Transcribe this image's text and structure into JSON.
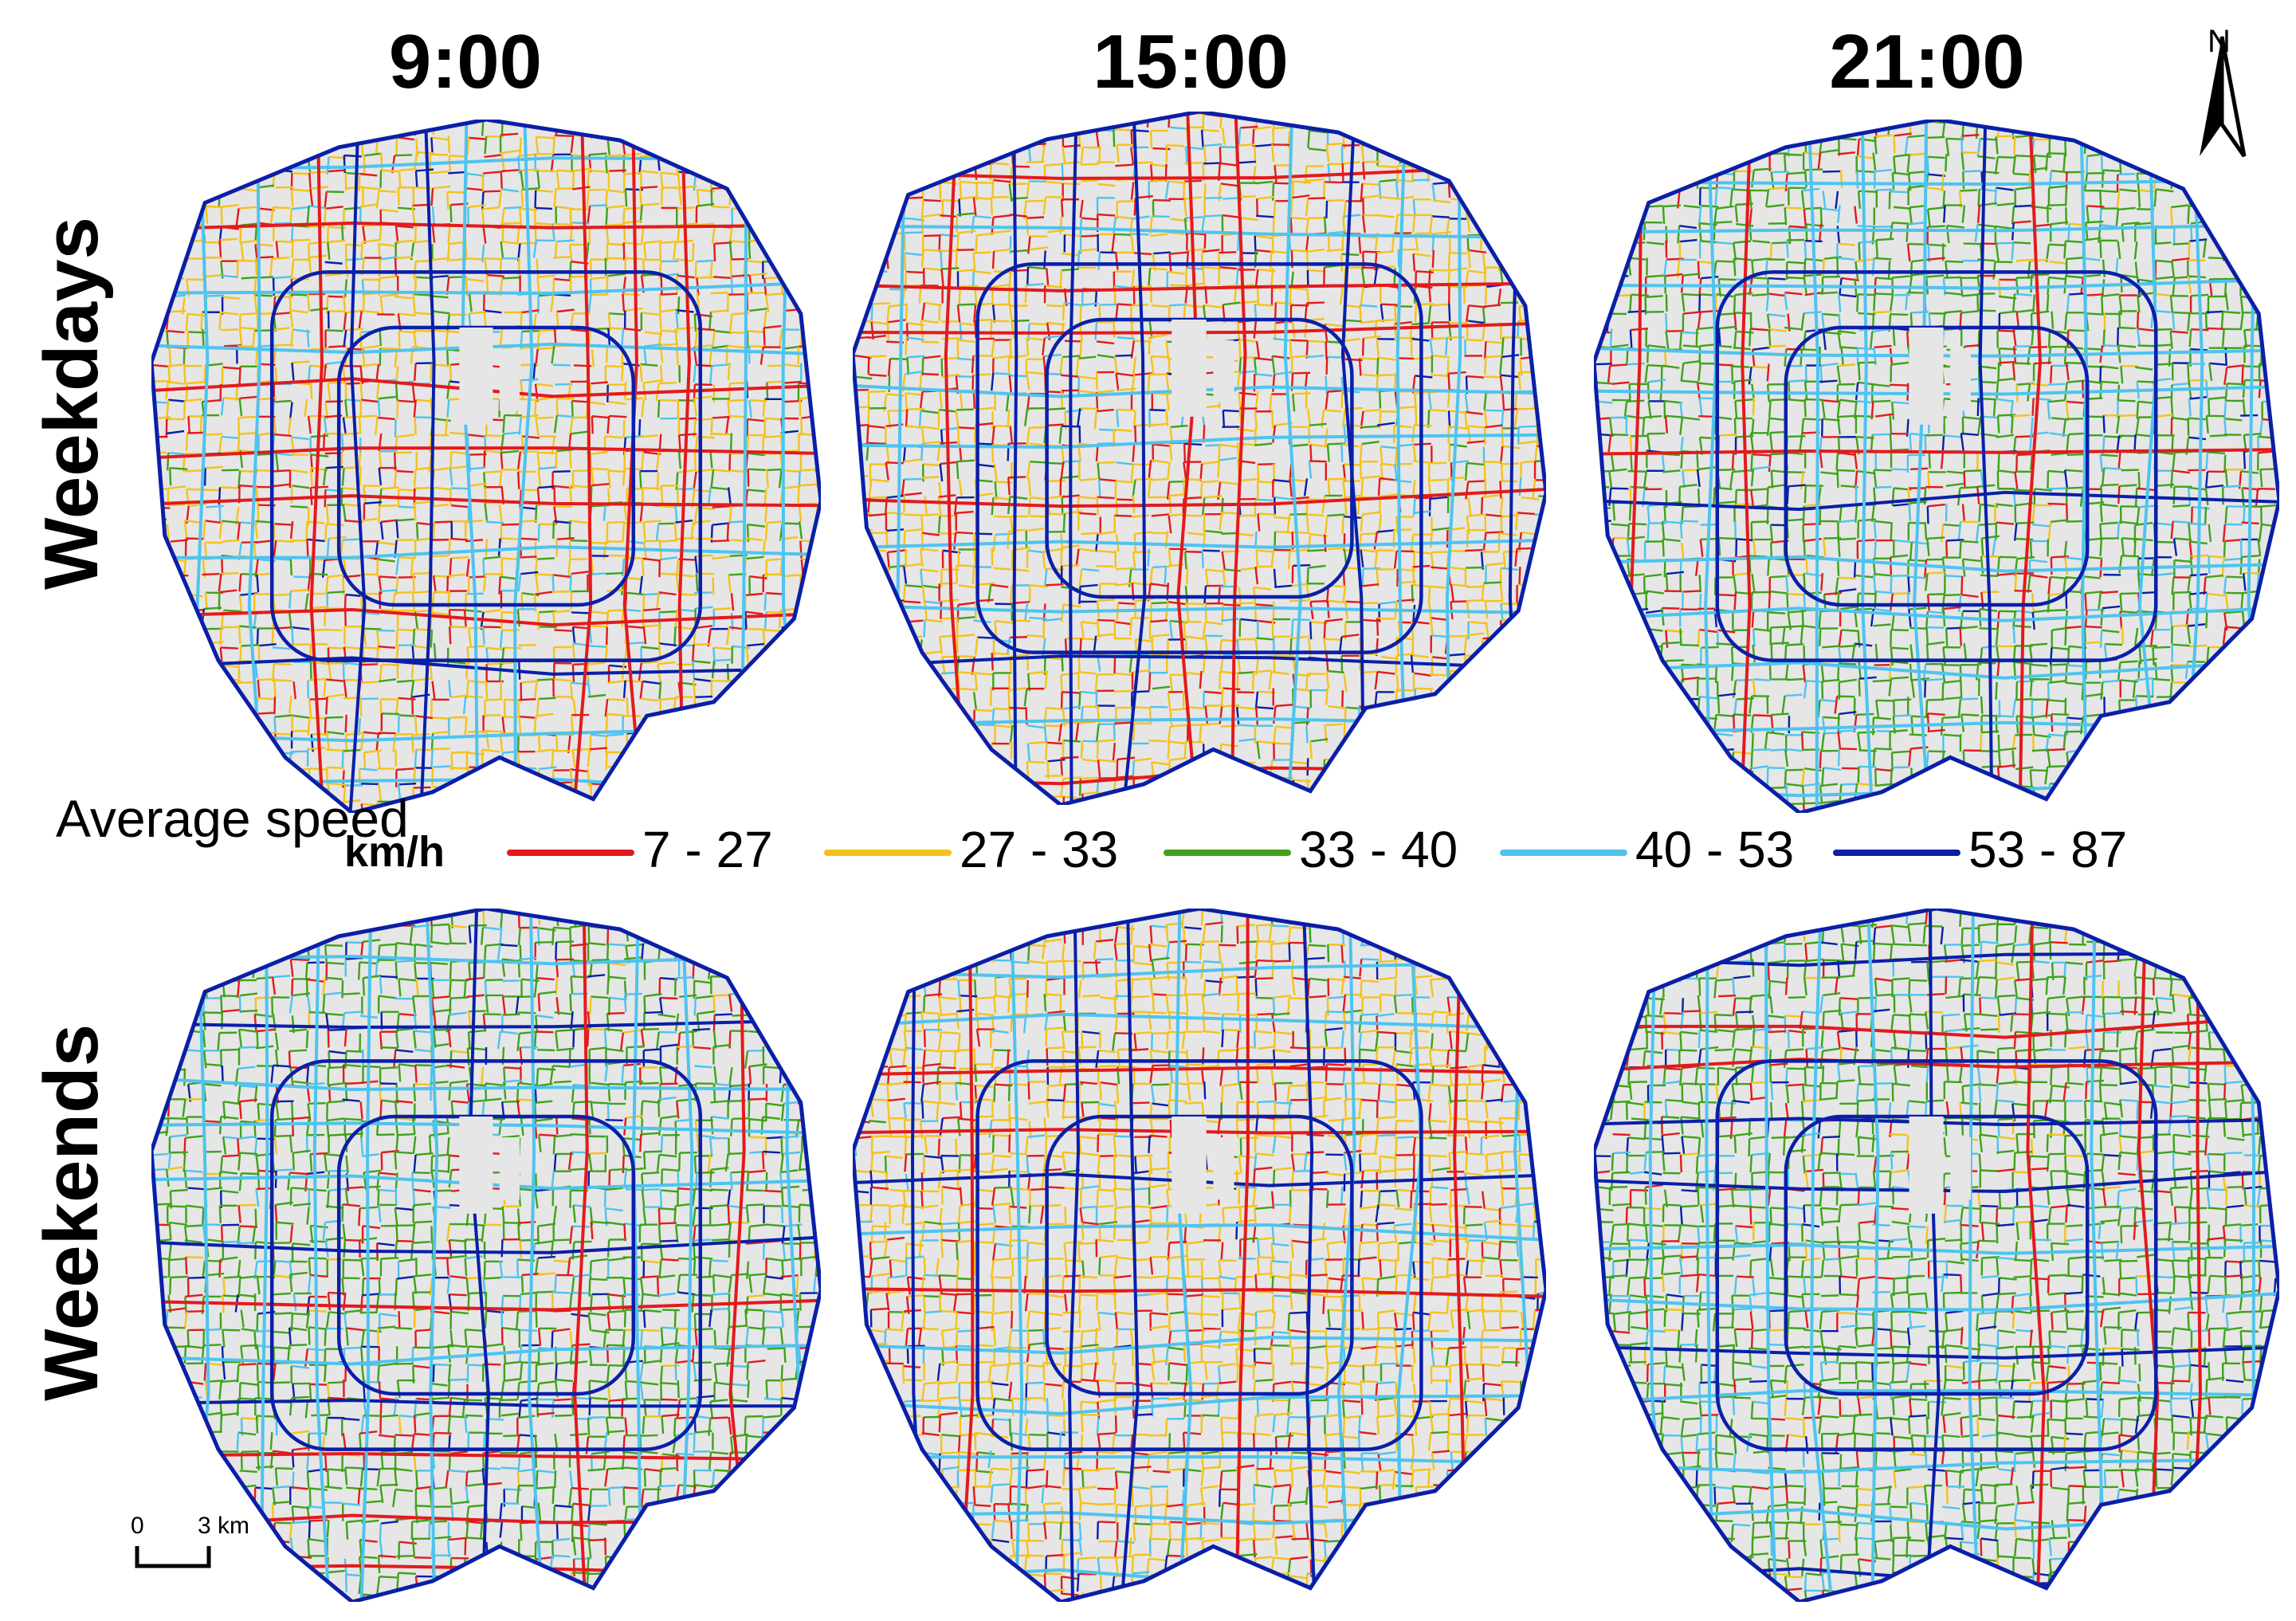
{
  "columns": [
    {
      "label": "9:00"
    },
    {
      "label": "15:00"
    },
    {
      "label": "21:00"
    }
  ],
  "rows": [
    {
      "label": "Weekdays"
    },
    {
      "label": "Weekends"
    }
  ],
  "legend": {
    "title": "Average speed",
    "unit": "km/h",
    "classes": [
      {
        "label": "7 - 27",
        "color": "#e31a1c"
      },
      {
        "label": "27 - 33",
        "color": "#f5c21b"
      },
      {
        "label": "33 - 40",
        "color": "#3fa21a"
      },
      {
        "label": "40 - 53",
        "color": "#4fc3ee"
      },
      {
        "label": "53 - 87",
        "color": "#0a1fa8"
      }
    ]
  },
  "panels": [
    {
      "row": "Weekdays",
      "time": "9:00",
      "dominant": "27 - 33",
      "mix": [
        0.18,
        0.55,
        0.12,
        0.1,
        0.05
      ]
    },
    {
      "row": "Weekdays",
      "time": "15:00",
      "dominant": "27 - 33",
      "mix": [
        0.22,
        0.55,
        0.08,
        0.1,
        0.05
      ]
    },
    {
      "row": "Weekdays",
      "time": "21:00",
      "dominant": "33 - 40",
      "mix": [
        0.12,
        0.06,
        0.62,
        0.14,
        0.06
      ]
    },
    {
      "row": "Weekends",
      "time": "9:00",
      "dominant": "33 - 40",
      "mix": [
        0.14,
        0.04,
        0.62,
        0.14,
        0.06
      ]
    },
    {
      "row": "Weekends",
      "time": "15:00",
      "dominant": "27 - 33",
      "mix": [
        0.18,
        0.56,
        0.1,
        0.11,
        0.05
      ]
    },
    {
      "row": "Weekends",
      "time": "21:00",
      "dominant": "33 - 40",
      "mix": [
        0.12,
        0.05,
        0.63,
        0.14,
        0.06
      ]
    }
  ],
  "north_arrow": {
    "label": "N"
  },
  "scale_bar": {
    "start": "0",
    "end": "3 km"
  },
  "map_background": "#e6e6e6"
}
